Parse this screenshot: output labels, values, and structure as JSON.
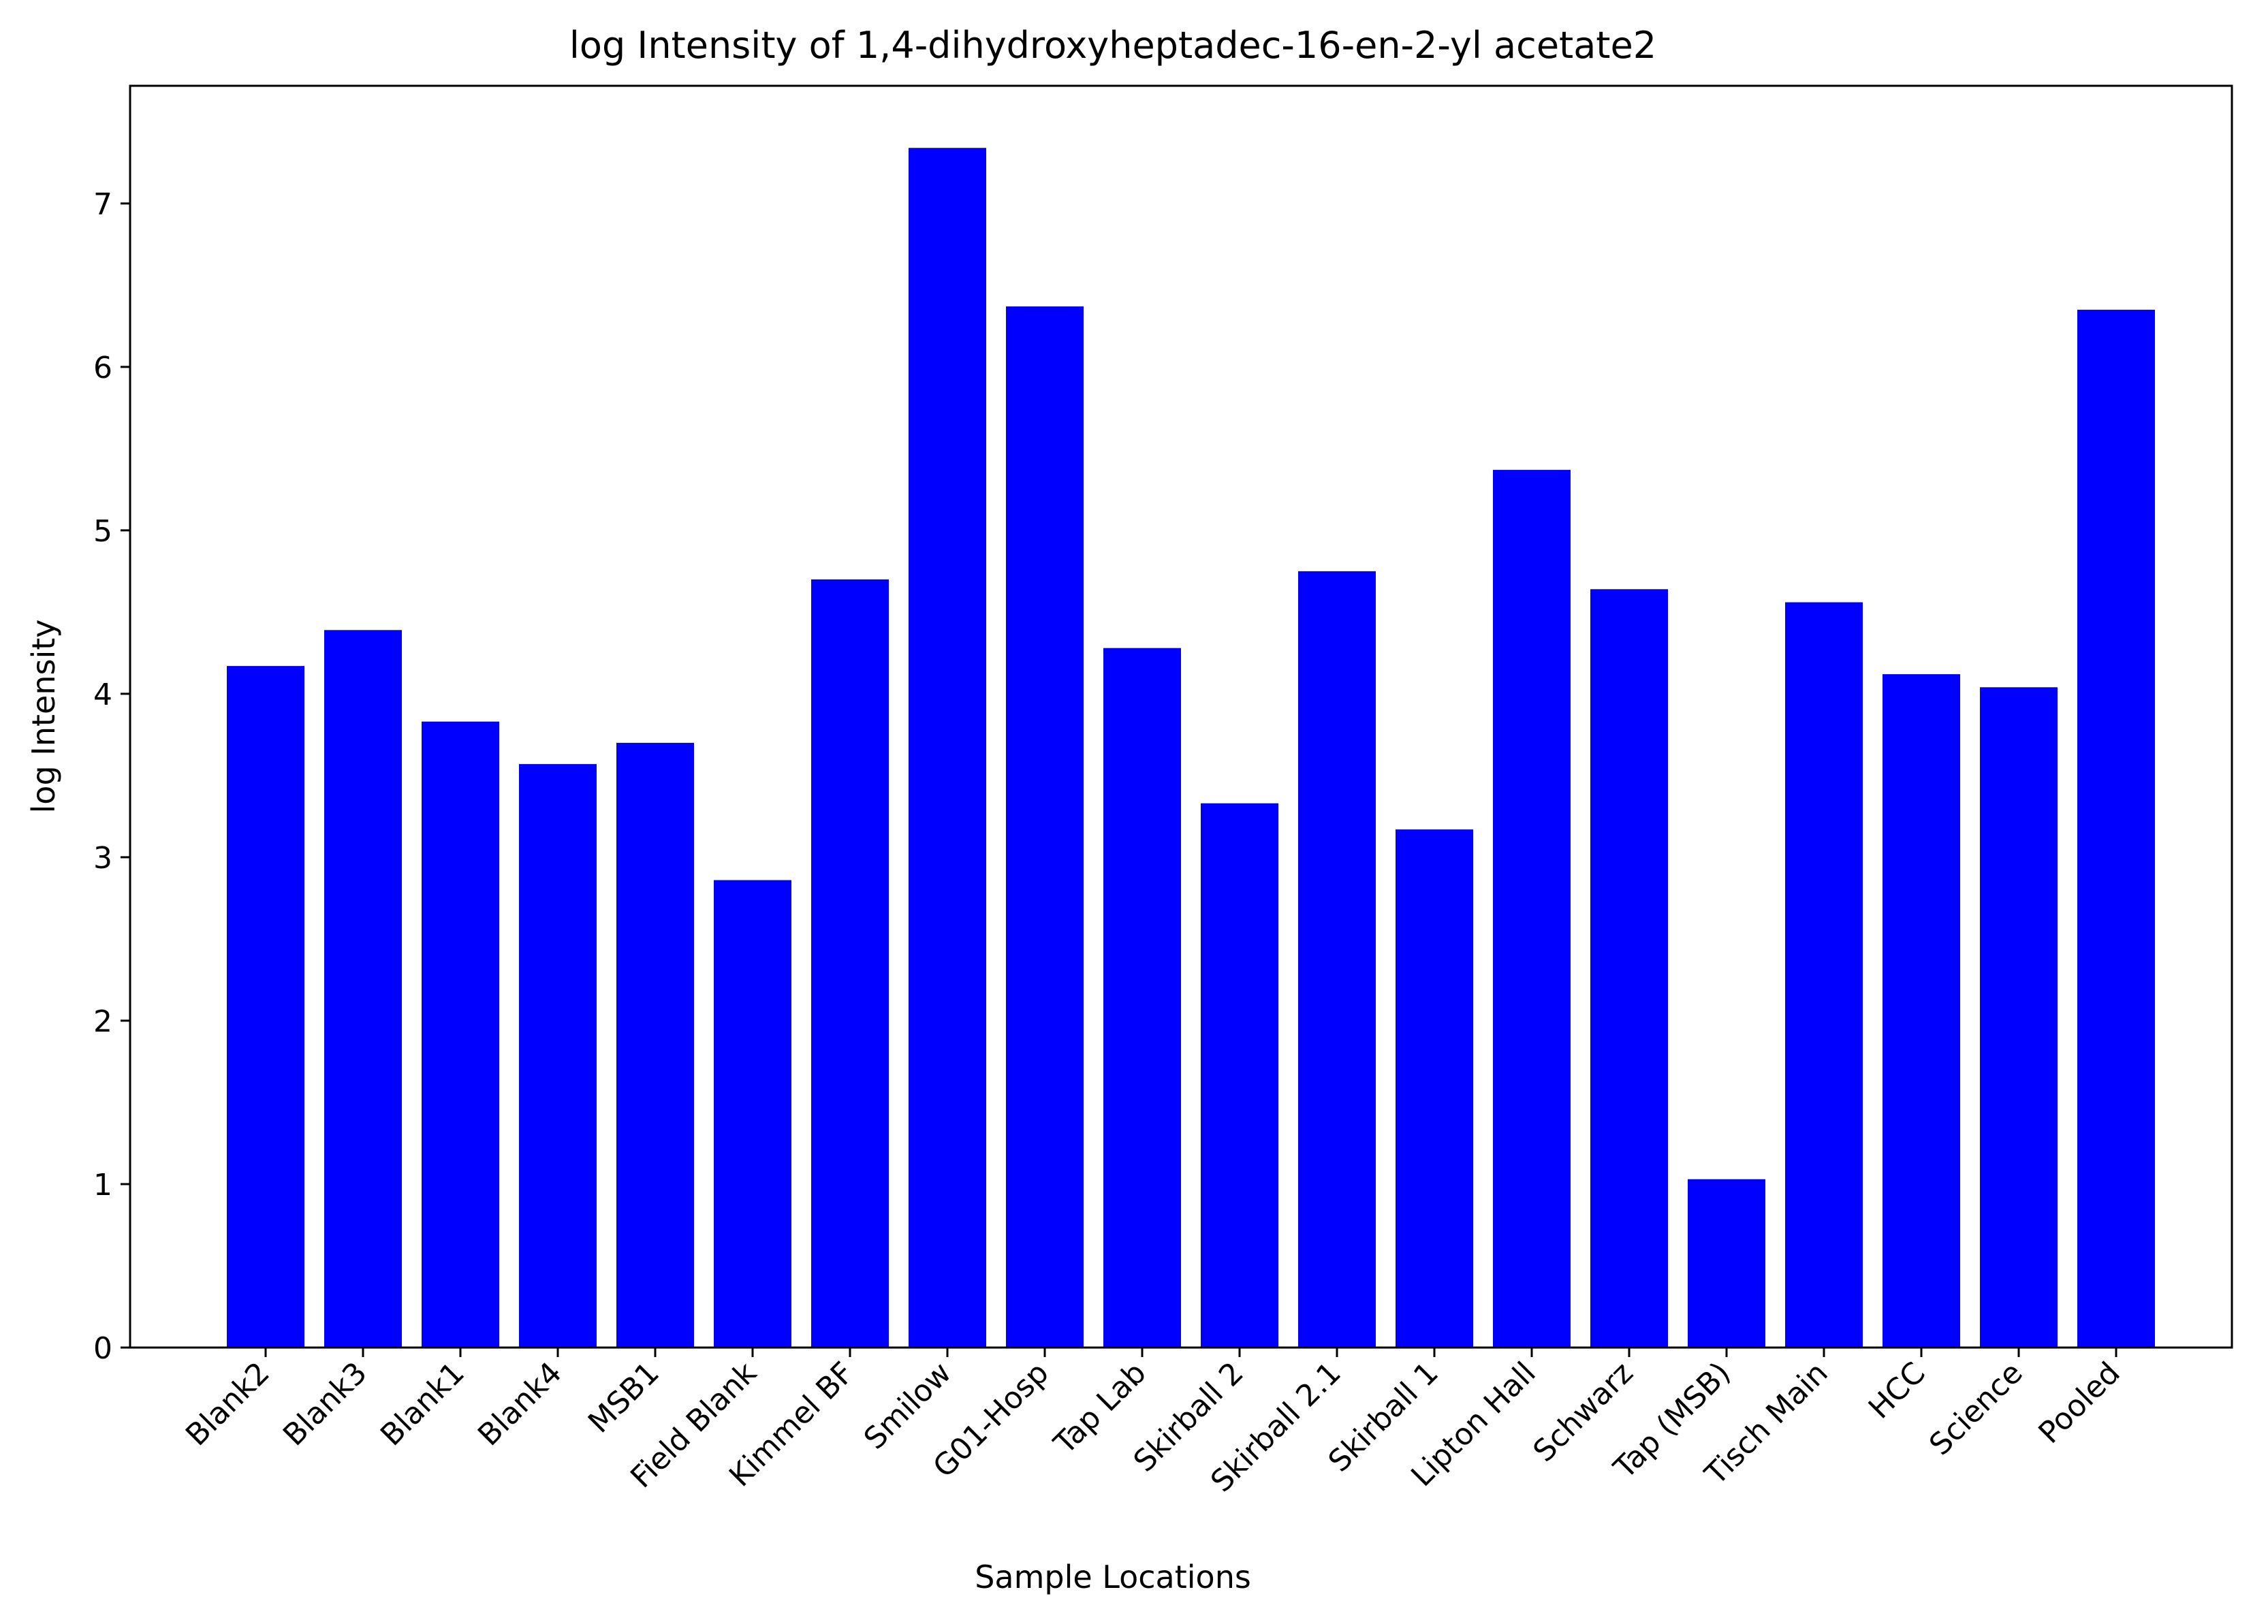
{
  "chart_data": {
    "type": "bar",
    "title": "log Intensity of 1,4-dihydroxyheptadec-16-en-2-yl acetate2",
    "xlabel": "Sample Locations",
    "ylabel": "log Intensity",
    "categories": [
      "Blank2",
      "Blank3",
      "Blank1",
      "Blank4",
      "MSB1",
      "Field Blank",
      "Kimmel BF",
      "Smilow",
      "G01-Hosp",
      "Tap Lab",
      "Skirball 2",
      "Skirball 2.1",
      "Skirball 1",
      "Lipton Hall",
      "Schwarz",
      "Tap (MSB)",
      "Tisch Main",
      "HCC",
      "Science",
      "Pooled"
    ],
    "values": [
      4.17,
      4.39,
      3.83,
      3.57,
      3.7,
      2.86,
      4.7,
      7.34,
      6.37,
      4.28,
      3.33,
      4.75,
      3.17,
      5.37,
      4.64,
      1.03,
      4.56,
      4.12,
      4.04,
      6.35
    ],
    "ylim": [
      0,
      7.72
    ],
    "yticks": [
      0,
      1,
      2,
      3,
      4,
      5,
      6,
      7
    ],
    "bar_color": "#0000ff",
    "grid": false,
    "legend": "none"
  }
}
